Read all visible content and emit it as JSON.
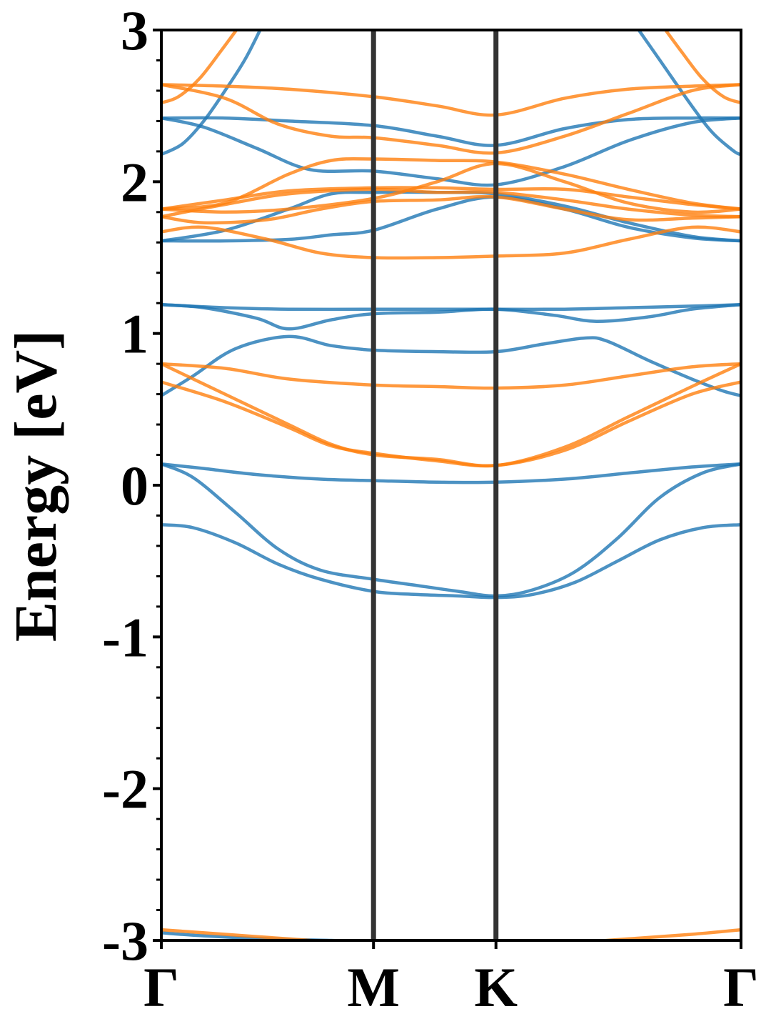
{
  "chart_data": {
    "type": "line",
    "title": "",
    "xlabel": "",
    "ylabel": "Energy [eV]",
    "ylim": [
      -3,
      3
    ],
    "xlim": [
      0,
      2.732
    ],
    "grid": false,
    "legend": "none",
    "yticks": [
      "-3",
      "-2",
      "-1",
      "0",
      "1",
      "2",
      "3"
    ],
    "kpath": [
      {
        "label": "Γ",
        "x": 0
      },
      {
        "label": "M",
        "x": 1.0
      },
      {
        "label": "K",
        "x": 1.577
      },
      {
        "label": "Γ",
        "x": 2.732
      }
    ],
    "colors": {
      "spin_up": "#1f77b4",
      "spin_down": "#ff7f0e",
      "kline": "#333333"
    },
    "series": [
      {
        "color": "#1f77b4",
        "x": [
          0,
          0.15,
          0.35,
          0.55,
          0.75,
          1.0,
          1.2,
          1.4,
          1.577,
          1.75,
          1.95,
          2.15,
          2.35,
          2.55,
          2.732
        ],
        "values": [
          -0.26,
          -0.28,
          -0.38,
          -0.52,
          -0.62,
          -0.7,
          -0.72,
          -0.73,
          -0.74,
          -0.72,
          -0.64,
          -0.5,
          -0.36,
          -0.28,
          -0.26
        ]
      },
      {
        "color": "#1f77b4",
        "x": [
          0,
          0.15,
          0.35,
          0.55,
          0.75,
          1.0,
          1.2,
          1.4,
          1.577,
          1.75,
          1.95,
          2.15,
          2.35,
          2.55,
          2.732
        ],
        "values": [
          0.14,
          0.05,
          -0.18,
          -0.42,
          -0.56,
          -0.62,
          -0.66,
          -0.7,
          -0.73,
          -0.69,
          -0.57,
          -0.35,
          -0.08,
          0.08,
          0.14
        ]
      },
      {
        "color": "#1f77b4",
        "x": [
          0,
          0.2,
          0.45,
          0.75,
          1.0,
          1.3,
          1.577,
          1.9,
          2.2,
          2.5,
          2.732
        ],
        "values": [
          0.14,
          0.11,
          0.07,
          0.04,
          0.03,
          0.02,
          0.02,
          0.04,
          0.08,
          0.12,
          0.14
        ]
      },
      {
        "color": "#1f77b4",
        "x": [
          0,
          0.15,
          0.35,
          0.6,
          0.8,
          1.0,
          1.3,
          1.577,
          1.8,
          2.0,
          2.1,
          2.3,
          2.5,
          2.65,
          2.732
        ],
        "values": [
          0.59,
          0.72,
          0.9,
          0.98,
          0.92,
          0.89,
          0.88,
          0.88,
          0.93,
          0.97,
          0.95,
          0.82,
          0.7,
          0.62,
          0.59
        ]
      },
      {
        "color": "#1f77b4",
        "x": [
          0,
          0.2,
          0.45,
          0.6,
          0.8,
          1.0,
          1.3,
          1.577,
          1.85,
          2.05,
          2.3,
          2.5,
          2.732
        ],
        "values": [
          1.19,
          1.17,
          1.1,
          1.03,
          1.09,
          1.13,
          1.14,
          1.16,
          1.12,
          1.08,
          1.11,
          1.16,
          1.19
        ]
      },
      {
        "color": "#1f77b4",
        "x": [
          0,
          0.3,
          0.6,
          1.0,
          1.3,
          1.577,
          1.9,
          2.2,
          2.5,
          2.732
        ],
        "values": [
          1.19,
          1.17,
          1.16,
          1.16,
          1.16,
          1.16,
          1.16,
          1.17,
          1.18,
          1.19
        ]
      },
      {
        "color": "#1f77b4",
        "x": [
          0,
          0.3,
          0.6,
          0.8,
          1.0,
          1.3,
          1.577,
          1.9,
          2.2,
          2.5,
          2.732
        ],
        "values": [
          1.61,
          1.61,
          1.62,
          1.65,
          1.68,
          1.82,
          1.9,
          1.82,
          1.7,
          1.63,
          1.61
        ]
      },
      {
        "color": "#1f77b4",
        "x": [
          0,
          0.3,
          0.6,
          0.8,
          1.0,
          1.3,
          1.577,
          1.9,
          2.2,
          2.5,
          2.732
        ],
        "values": [
          1.61,
          1.68,
          1.82,
          1.92,
          1.93,
          1.93,
          1.92,
          1.84,
          1.73,
          1.64,
          1.61
        ]
      },
      {
        "color": "#1f77b4",
        "x": [
          0,
          0.2,
          0.45,
          0.7,
          1.0,
          1.3,
          1.577,
          1.9,
          2.2,
          2.5,
          2.732
        ],
        "values": [
          2.42,
          2.36,
          2.22,
          2.08,
          2.07,
          2.02,
          1.98,
          2.1,
          2.27,
          2.39,
          2.42
        ]
      },
      {
        "color": "#1f77b4",
        "x": [
          0,
          0.3,
          0.6,
          1.0,
          1.3,
          1.577,
          1.9,
          2.2,
          2.5,
          2.732
        ],
        "values": [
          2.42,
          2.42,
          2.4,
          2.37,
          2.3,
          2.24,
          2.35,
          2.41,
          2.42,
          2.42
        ]
      },
      {
        "color": "#1f77b4",
        "x": [
          0,
          0.1,
          0.2,
          0.3,
          0.4,
          0.5
        ],
        "values": [
          2.18,
          2.25,
          2.4,
          2.6,
          2.82,
          3.1
        ]
      },
      {
        "color": "#1f77b4",
        "x": [
          2.2,
          2.35,
          2.5,
          2.6,
          2.7,
          2.732
        ],
        "values": [
          3.1,
          2.8,
          2.5,
          2.32,
          2.2,
          2.18
        ]
      },
      {
        "color": "#1f77b4",
        "x": [
          0,
          0.2,
          0.5,
          0.8,
          1.0
        ],
        "values": [
          -2.95,
          -2.97,
          -2.99,
          -3.0,
          -3.01
        ]
      },
      {
        "color": "#ff7f0e",
        "x": [
          0,
          0.3,
          0.6,
          0.8,
          1.0,
          1.3,
          1.577,
          1.9,
          2.2,
          2.5,
          2.732
        ],
        "values": [
          0.8,
          0.6,
          0.4,
          0.27,
          0.2,
          0.17,
          0.13,
          0.25,
          0.45,
          0.65,
          0.8
        ]
      },
      {
        "color": "#ff7f0e",
        "x": [
          0,
          0.3,
          0.6,
          0.8,
          1.0,
          1.3,
          1.577,
          1.9,
          2.2,
          2.5,
          2.732
        ],
        "values": [
          0.68,
          0.55,
          0.38,
          0.26,
          0.21,
          0.16,
          0.13,
          0.23,
          0.42,
          0.6,
          0.68
        ]
      },
      {
        "color": "#ff7f0e",
        "x": [
          0,
          0.3,
          0.6,
          1.0,
          1.3,
          1.577,
          1.9,
          2.2,
          2.5,
          2.732
        ],
        "values": [
          0.8,
          0.77,
          0.7,
          0.66,
          0.65,
          0.64,
          0.66,
          0.72,
          0.78,
          0.8
        ]
      },
      {
        "color": "#ff7f0e",
        "x": [
          0,
          0.2,
          0.5,
          0.75,
          1.0,
          1.3,
          1.577,
          1.9,
          2.2,
          2.5,
          2.732
        ],
        "values": [
          1.67,
          1.7,
          1.62,
          1.53,
          1.5,
          1.5,
          1.51,
          1.53,
          1.62,
          1.7,
          1.67
        ]
      },
      {
        "color": "#ff7f0e",
        "x": [
          0,
          0.2,
          0.5,
          0.75,
          1.0,
          1.3,
          1.577,
          1.9,
          2.2,
          2.5,
          2.732
        ],
        "values": [
          1.77,
          1.73,
          1.75,
          1.82,
          1.87,
          1.88,
          1.9,
          1.82,
          1.75,
          1.76,
          1.77
        ]
      },
      {
        "color": "#ff7f0e",
        "x": [
          0,
          0.3,
          0.6,
          1.0,
          1.3,
          1.577,
          1.9,
          2.2,
          2.5,
          2.732
        ],
        "values": [
          1.82,
          1.8,
          1.82,
          1.89,
          2.0,
          2.12,
          2.0,
          1.86,
          1.8,
          1.82
        ]
      },
      {
        "color": "#ff7f0e",
        "x": [
          0,
          0.3,
          0.6,
          1.0,
          1.3,
          1.577,
          1.9,
          2.2,
          2.5,
          2.732
        ],
        "values": [
          1.77,
          1.85,
          1.92,
          1.95,
          1.93,
          1.93,
          1.88,
          1.82,
          1.78,
          1.77
        ]
      },
      {
        "color": "#ff7f0e",
        "x": [
          0,
          0.3,
          0.6,
          1.0,
          1.3,
          1.577,
          1.9,
          2.2,
          2.5,
          2.732
        ],
        "values": [
          1.82,
          1.88,
          1.94,
          1.96,
          1.96,
          1.95,
          1.95,
          1.9,
          1.85,
          1.82
        ]
      },
      {
        "color": "#ff7f0e",
        "x": [
          0,
          0.3,
          0.6,
          0.8,
          1.0,
          1.3,
          1.577,
          1.9,
          2.2,
          2.5,
          2.732
        ],
        "values": [
          1.82,
          1.86,
          2.05,
          2.14,
          2.15,
          2.14,
          2.13,
          2.05,
          1.95,
          1.86,
          1.82
        ]
      },
      {
        "color": "#ff7f0e",
        "x": [
          0,
          0.3,
          0.55,
          0.8,
          1.0,
          1.3,
          1.577,
          1.9,
          2.2,
          2.5,
          2.732
        ],
        "values": [
          2.64,
          2.55,
          2.38,
          2.3,
          2.29,
          2.24,
          2.19,
          2.3,
          2.45,
          2.6,
          2.64
        ]
      },
      {
        "color": "#ff7f0e",
        "x": [
          0,
          0.3,
          0.6,
          1.0,
          1.3,
          1.577,
          1.9,
          2.2,
          2.5,
          2.732
        ],
        "values": [
          2.64,
          2.63,
          2.61,
          2.56,
          2.5,
          2.44,
          2.55,
          2.61,
          2.63,
          2.64
        ]
      },
      {
        "color": "#ff7f0e",
        "x": [
          0,
          0.08,
          0.18,
          0.28,
          0.38
        ],
        "values": [
          2.52,
          2.56,
          2.68,
          2.86,
          3.05
        ]
      },
      {
        "color": "#ff7f0e",
        "x": [
          2.35,
          2.45,
          2.55,
          2.65,
          2.732
        ],
        "values": [
          3.05,
          2.86,
          2.68,
          2.56,
          2.52
        ]
      },
      {
        "color": "#ff7f0e",
        "x": [
          0,
          0.3,
          0.6,
          0.9
        ],
        "values": [
          -2.93,
          -2.96,
          -2.99,
          -3.02
        ]
      },
      {
        "color": "#ff7f0e",
        "x": [
          1.9,
          2.2,
          2.5,
          2.732
        ],
        "values": [
          -3.02,
          -2.99,
          -2.96,
          -2.93
        ]
      }
    ]
  }
}
